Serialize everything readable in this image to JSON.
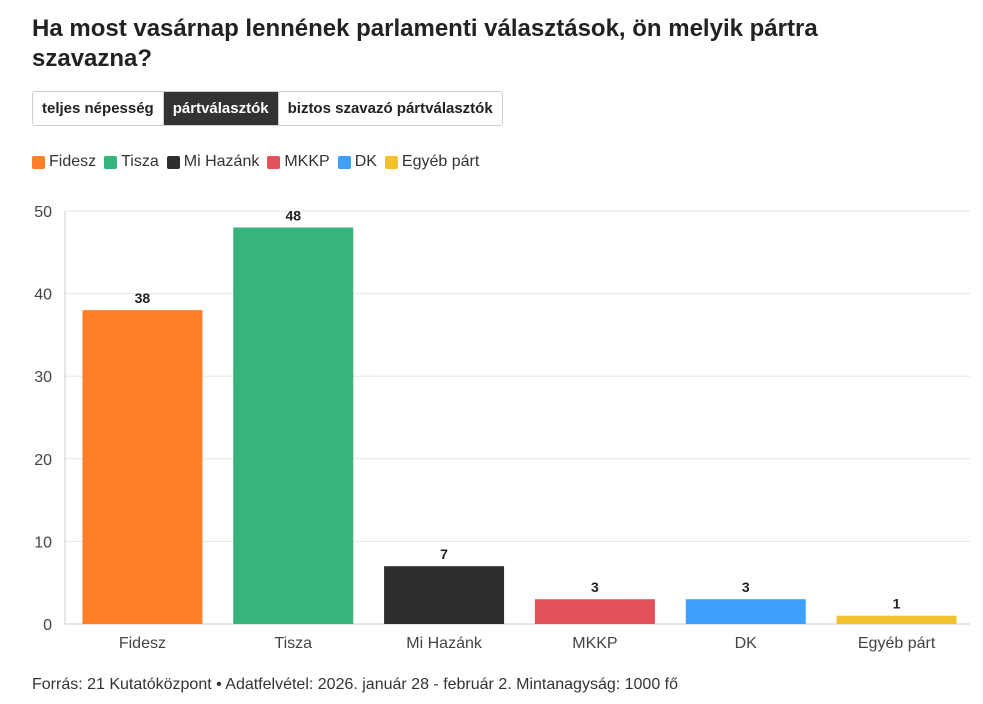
{
  "title": "Ha most vasárnap lennének parlamenti választások, ön melyik pártra szavazna?",
  "tabs": [
    {
      "label": "teljes népesség",
      "active": false
    },
    {
      "label": "pártválasztók",
      "active": true
    },
    {
      "label": "biztos szavazó pártválasztók",
      "active": false
    }
  ],
  "legend": [
    {
      "label": "Fidesz",
      "color": "#FF7F2A"
    },
    {
      "label": "Tisza",
      "color": "#35B47B"
    },
    {
      "label": "Mi Hazánk",
      "color": "#2E2E2E"
    },
    {
      "label": "MKKP",
      "color": "#E2505A"
    },
    {
      "label": "DK",
      "color": "#3DA0FA"
    },
    {
      "label": "Egyéb párt",
      "color": "#F2C12E"
    }
  ],
  "chart_data": {
    "type": "bar",
    "categories": [
      "Fidesz",
      "Tisza",
      "Mi Hazánk",
      "MKKP",
      "DK",
      "Egyéb párt"
    ],
    "values": [
      38,
      48,
      7,
      3,
      3,
      1
    ],
    "colors": [
      "#FF7F2A",
      "#35B47B",
      "#2E2E2E",
      "#E2505A",
      "#3DA0FA",
      "#F2C12E"
    ],
    "ylim": [
      0,
      50
    ],
    "yticks": [
      0,
      10,
      20,
      30,
      40,
      50
    ],
    "xlabel": "",
    "ylabel": "",
    "grid": true
  },
  "footer": "Forrás: 21 Kutatóközpont • Adatfelvétel: 2026. január 28 - február 2. Mintanagyság: 1000 fő"
}
